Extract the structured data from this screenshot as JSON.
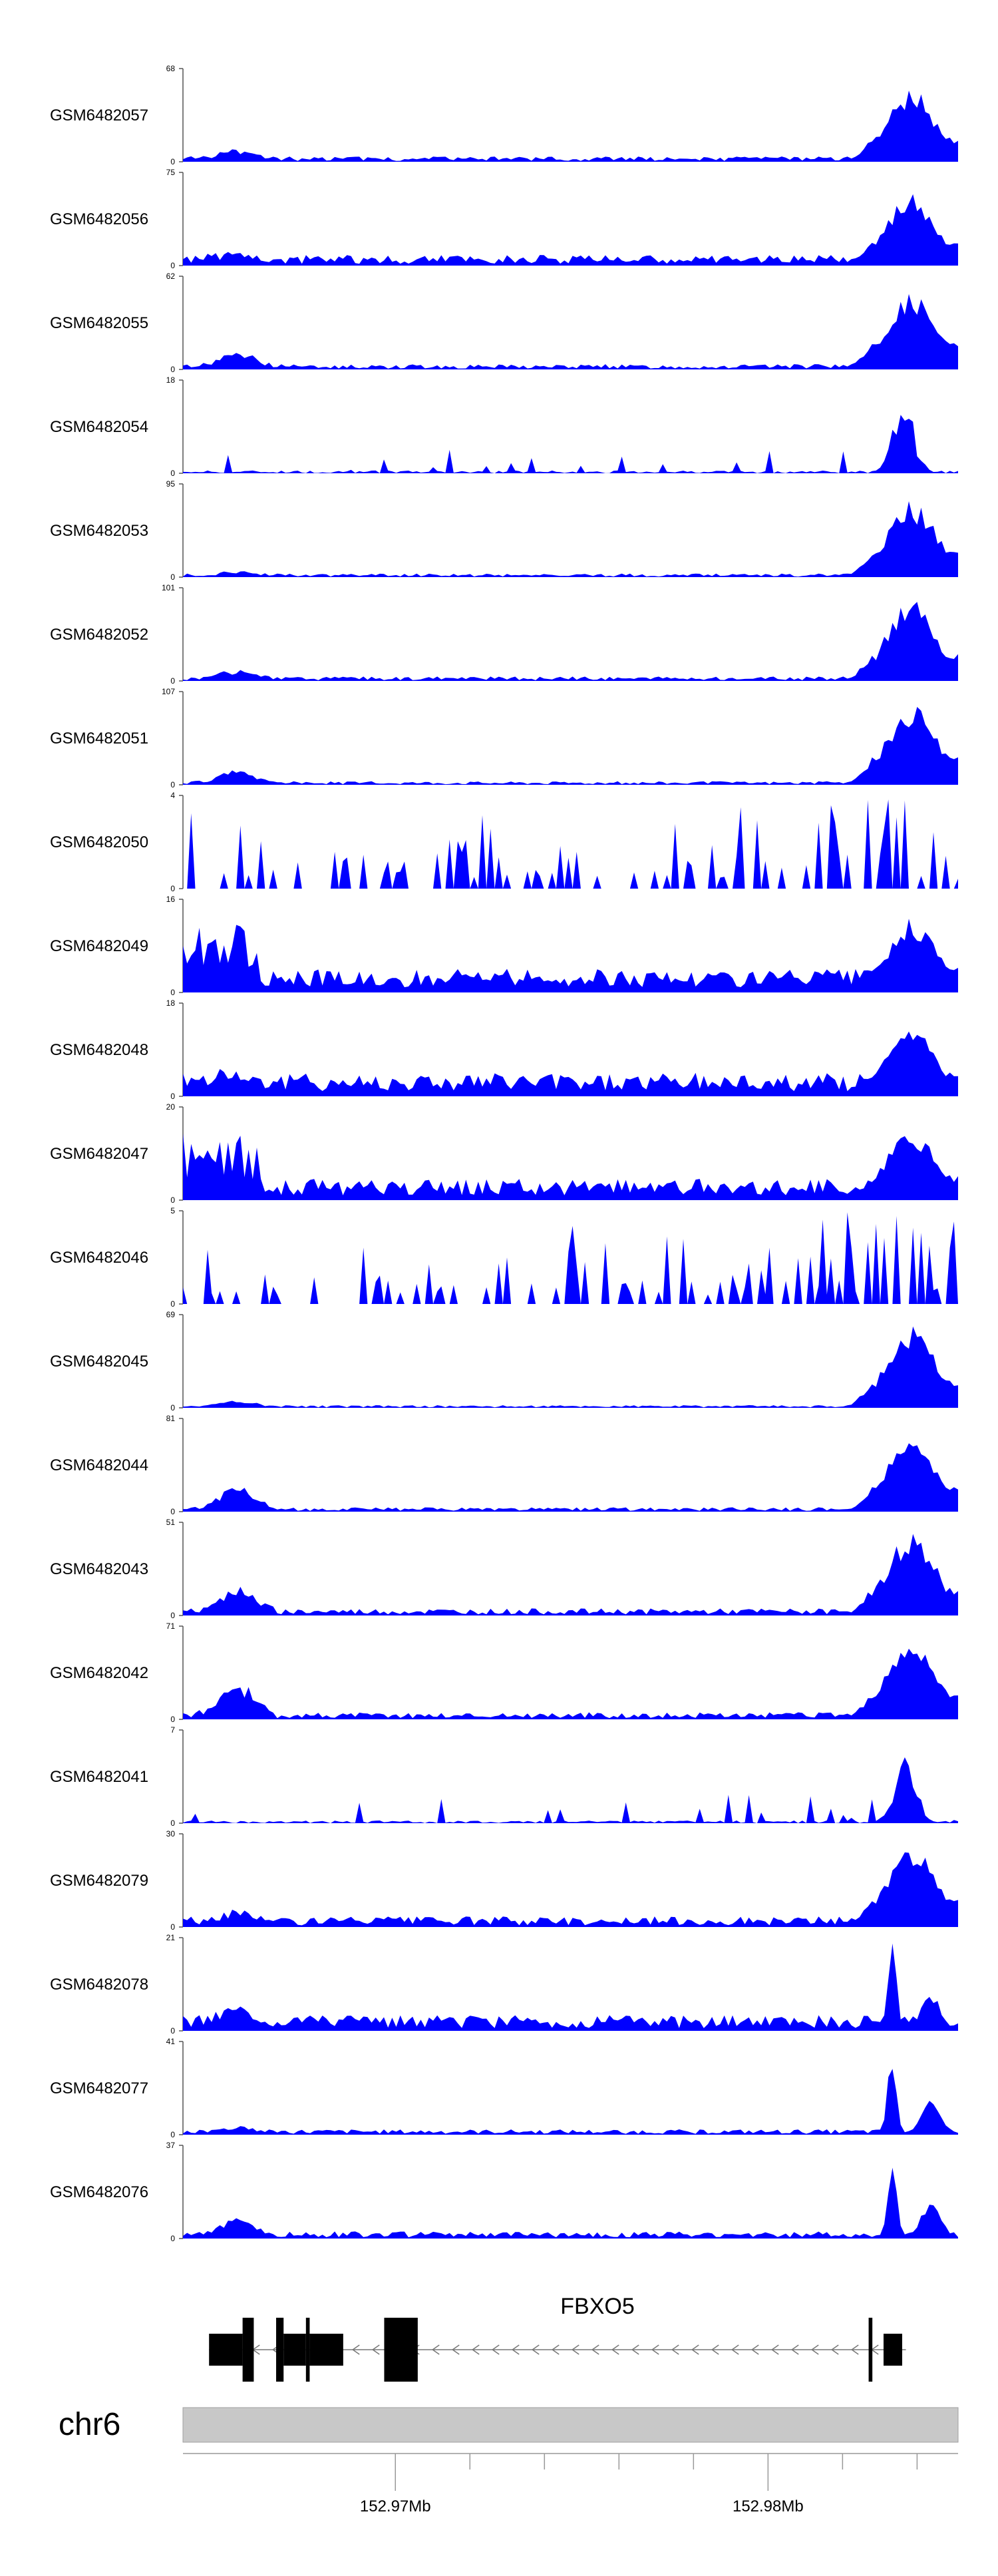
{
  "chart_data": {
    "type": "area",
    "title": "",
    "xlabel": "",
    "fill_color": "#0000ff",
    "x_range": [
      152.9643,
      152.9851
    ],
    "tracks": [
      {
        "name": "GSM6482057",
        "ymax": 68,
        "profile": "peak",
        "tss_level": 0.78,
        "base": 0.06,
        "tail_level": 0.1,
        "seed": 57
      },
      {
        "name": "GSM6482056",
        "ymax": 75,
        "profile": "peak",
        "tss_level": 0.8,
        "base": 0.12,
        "tail_level": 0.08,
        "seed": 56
      },
      {
        "name": "GSM6482055",
        "ymax": 62,
        "profile": "peak",
        "tss_level": 0.82,
        "base": 0.06,
        "tail_level": 0.18,
        "seed": 55
      },
      {
        "name": "GSM6482054",
        "ymax": 18,
        "profile": "spiky",
        "tss_level": 0.92,
        "base": 0.12,
        "tail_level": 0.1,
        "seed": 54
      },
      {
        "name": "GSM6482053",
        "ymax": 95,
        "profile": "peak",
        "tss_level": 0.82,
        "base": 0.04,
        "tail_level": 0.04,
        "seed": 53
      },
      {
        "name": "GSM6482052",
        "ymax": 101,
        "profile": "peak",
        "tss_level": 0.88,
        "base": 0.05,
        "tail_level": 0.1,
        "seed": 52
      },
      {
        "name": "GSM6482051",
        "ymax": 107,
        "profile": "peak",
        "tss_level": 0.88,
        "base": 0.04,
        "tail_level": 0.14,
        "seed": 51
      },
      {
        "name": "GSM6482050",
        "ymax": 4,
        "profile": "sparse",
        "tss_level": 0.9,
        "base": 0.0,
        "tail_level": 0.0,
        "seed": 50
      },
      {
        "name": "GSM6482049",
        "ymax": 16,
        "profile": "noisy",
        "tss_level": 0.8,
        "base": 0.22,
        "tail_level": 0.75,
        "seed": 49
      },
      {
        "name": "GSM6482048",
        "ymax": 18,
        "profile": "noisy",
        "tss_level": 0.78,
        "base": 0.22,
        "tail_level": 0.3,
        "seed": 48
      },
      {
        "name": "GSM6482047",
        "ymax": 20,
        "profile": "noisy",
        "tss_level": 0.78,
        "base": 0.2,
        "tail_level": 0.75,
        "seed": 47
      },
      {
        "name": "GSM6482046",
        "ymax": 5,
        "profile": "sparse",
        "tss_level": 0.7,
        "base": 0.0,
        "tail_level": 0.0,
        "seed": 46
      },
      {
        "name": "GSM6482045",
        "ymax": 69,
        "profile": "peak",
        "tss_level": 0.88,
        "base": 0.03,
        "tail_level": 0.06,
        "seed": 45
      },
      {
        "name": "GSM6482044",
        "ymax": 81,
        "profile": "peak",
        "tss_level": 0.84,
        "base": 0.05,
        "tail_level": 0.28,
        "seed": 44
      },
      {
        "name": "GSM6482043",
        "ymax": 51,
        "profile": "peak",
        "tss_level": 0.9,
        "base": 0.08,
        "tail_level": 0.28,
        "seed": 43
      },
      {
        "name": "GSM6482042",
        "ymax": 71,
        "profile": "peak",
        "tss_level": 0.86,
        "base": 0.08,
        "tail_level": 0.38,
        "seed": 42
      },
      {
        "name": "GSM6482041",
        "ymax": 7,
        "profile": "spiky",
        "tss_level": 0.92,
        "base": 0.15,
        "tail_level": 0.1,
        "seed": 41
      },
      {
        "name": "GSM6482079",
        "ymax": 30,
        "profile": "peak",
        "tss_level": 0.88,
        "base": 0.12,
        "tail_level": 0.1,
        "seed": 79
      },
      {
        "name": "GSM6482078",
        "ymax": 21,
        "profile": "sharp",
        "tss_level": 0.95,
        "base": 0.18,
        "tail_level": 0.15,
        "seed": 78
      },
      {
        "name": "GSM6482077",
        "ymax": 41,
        "profile": "sharp",
        "tss_level": 0.95,
        "base": 0.06,
        "tail_level": 0.05,
        "seed": 77
      },
      {
        "name": "GSM6482076",
        "ymax": 37,
        "profile": "sharp",
        "tss_level": 0.95,
        "base": 0.08,
        "tail_level": 0.18,
        "seed": 76
      }
    ],
    "gene": {
      "name": "FBXO5",
      "strand": "-",
      "intron": [
        152.965,
        152.9837
      ],
      "exons": [
        {
          "start": 152.965,
          "end": 152.9659,
          "coding": true
        },
        {
          "start": 152.9659,
          "end": 152.9662,
          "coding": false
        },
        {
          "start": 152.9668,
          "end": 152.967,
          "coding": false
        },
        {
          "start": 152.967,
          "end": 152.9676,
          "coding": true
        },
        {
          "start": 152.9676,
          "end": 152.9677,
          "coding": false
        },
        {
          "start": 152.9677,
          "end": 152.9686,
          "coding": true
        },
        {
          "start": 152.9697,
          "end": 152.9706,
          "coding": false
        },
        {
          "start": 152.9827,
          "end": 152.9828,
          "coding": false
        },
        {
          "start": 152.9831,
          "end": 152.9836,
          "coding": true
        }
      ]
    },
    "chromosome": "chr6",
    "axis_ticks": [
      152.97,
      152.972,
      152.974,
      152.976,
      152.978,
      152.98,
      152.982,
      152.984
    ],
    "axis_labels": [
      {
        "value": 152.97,
        "label": "152.97Mb"
      },
      {
        "value": 152.98,
        "label": "152.98Mb"
      }
    ]
  }
}
